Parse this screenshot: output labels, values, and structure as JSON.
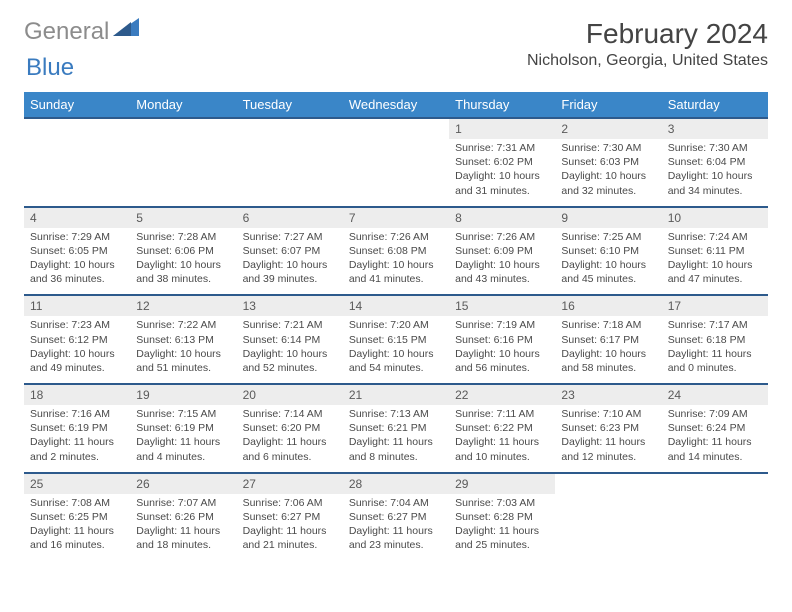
{
  "logo": {
    "general": "General",
    "blue": "Blue"
  },
  "header": {
    "month_title": "February 2024",
    "location": "Nicholson, Georgia, United States"
  },
  "colors": {
    "header_bg": "#3a86c8",
    "header_border": "#2d5a8c",
    "daynum_bg": "#ededed",
    "logo_gray": "#8c8c8c",
    "logo_blue": "#3a7bbf"
  },
  "weekdays": [
    "Sunday",
    "Monday",
    "Tuesday",
    "Wednesday",
    "Thursday",
    "Friday",
    "Saturday"
  ],
  "grid": {
    "first_weekday_index": 4,
    "days_in_month": 29,
    "rows": 5
  },
  "days": {
    "1": {
      "sunrise": "7:31 AM",
      "sunset": "6:02 PM",
      "daylight": "10 hours and 31 minutes."
    },
    "2": {
      "sunrise": "7:30 AM",
      "sunset": "6:03 PM",
      "daylight": "10 hours and 32 minutes."
    },
    "3": {
      "sunrise": "7:30 AM",
      "sunset": "6:04 PM",
      "daylight": "10 hours and 34 minutes."
    },
    "4": {
      "sunrise": "7:29 AM",
      "sunset": "6:05 PM",
      "daylight": "10 hours and 36 minutes."
    },
    "5": {
      "sunrise": "7:28 AM",
      "sunset": "6:06 PM",
      "daylight": "10 hours and 38 minutes."
    },
    "6": {
      "sunrise": "7:27 AM",
      "sunset": "6:07 PM",
      "daylight": "10 hours and 39 minutes."
    },
    "7": {
      "sunrise": "7:26 AM",
      "sunset": "6:08 PM",
      "daylight": "10 hours and 41 minutes."
    },
    "8": {
      "sunrise": "7:26 AM",
      "sunset": "6:09 PM",
      "daylight": "10 hours and 43 minutes."
    },
    "9": {
      "sunrise": "7:25 AM",
      "sunset": "6:10 PM",
      "daylight": "10 hours and 45 minutes."
    },
    "10": {
      "sunrise": "7:24 AM",
      "sunset": "6:11 PM",
      "daylight": "10 hours and 47 minutes."
    },
    "11": {
      "sunrise": "7:23 AM",
      "sunset": "6:12 PM",
      "daylight": "10 hours and 49 minutes."
    },
    "12": {
      "sunrise": "7:22 AM",
      "sunset": "6:13 PM",
      "daylight": "10 hours and 51 minutes."
    },
    "13": {
      "sunrise": "7:21 AM",
      "sunset": "6:14 PM",
      "daylight": "10 hours and 52 minutes."
    },
    "14": {
      "sunrise": "7:20 AM",
      "sunset": "6:15 PM",
      "daylight": "10 hours and 54 minutes."
    },
    "15": {
      "sunrise": "7:19 AM",
      "sunset": "6:16 PM",
      "daylight": "10 hours and 56 minutes."
    },
    "16": {
      "sunrise": "7:18 AM",
      "sunset": "6:17 PM",
      "daylight": "10 hours and 58 minutes."
    },
    "17": {
      "sunrise": "7:17 AM",
      "sunset": "6:18 PM",
      "daylight": "11 hours and 0 minutes."
    },
    "18": {
      "sunrise": "7:16 AM",
      "sunset": "6:19 PM",
      "daylight": "11 hours and 2 minutes."
    },
    "19": {
      "sunrise": "7:15 AM",
      "sunset": "6:19 PM",
      "daylight": "11 hours and 4 minutes."
    },
    "20": {
      "sunrise": "7:14 AM",
      "sunset": "6:20 PM",
      "daylight": "11 hours and 6 minutes."
    },
    "21": {
      "sunrise": "7:13 AM",
      "sunset": "6:21 PM",
      "daylight": "11 hours and 8 minutes."
    },
    "22": {
      "sunrise": "7:11 AM",
      "sunset": "6:22 PM",
      "daylight": "11 hours and 10 minutes."
    },
    "23": {
      "sunrise": "7:10 AM",
      "sunset": "6:23 PM",
      "daylight": "11 hours and 12 minutes."
    },
    "24": {
      "sunrise": "7:09 AM",
      "sunset": "6:24 PM",
      "daylight": "11 hours and 14 minutes."
    },
    "25": {
      "sunrise": "7:08 AM",
      "sunset": "6:25 PM",
      "daylight": "11 hours and 16 minutes."
    },
    "26": {
      "sunrise": "7:07 AM",
      "sunset": "6:26 PM",
      "daylight": "11 hours and 18 minutes."
    },
    "27": {
      "sunrise": "7:06 AM",
      "sunset": "6:27 PM",
      "daylight": "11 hours and 21 minutes."
    },
    "28": {
      "sunrise": "7:04 AM",
      "sunset": "6:27 PM",
      "daylight": "11 hours and 23 minutes."
    },
    "29": {
      "sunrise": "7:03 AM",
      "sunset": "6:28 PM",
      "daylight": "11 hours and 25 minutes."
    }
  },
  "labels": {
    "sunrise": "Sunrise: ",
    "sunset": "Sunset: ",
    "daylight": "Daylight: "
  }
}
